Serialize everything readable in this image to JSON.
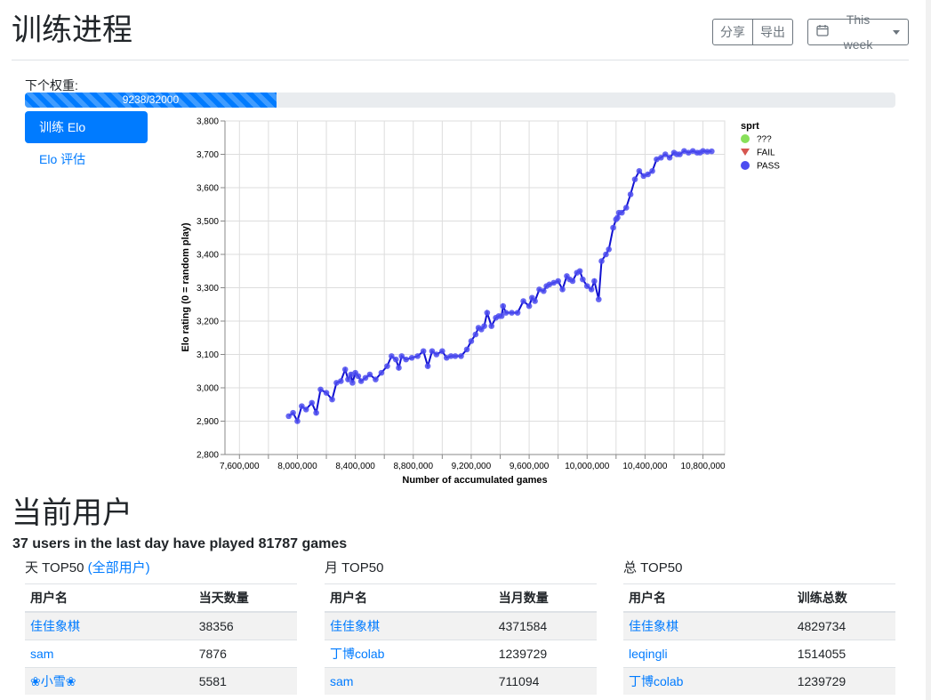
{
  "header": {
    "title": "训练进程",
    "share_label": "分享",
    "export_label": "导出",
    "range_label": "This week"
  },
  "progress": {
    "label": "下个权重:",
    "text": "9238/32000",
    "fraction": 0.289
  },
  "nav": {
    "items": [
      {
        "label": "训练 Elo",
        "active": true
      },
      {
        "label": "Elo 评估",
        "active": false
      }
    ]
  },
  "chart_data": {
    "type": "line",
    "xlabel": "Number of accumulated games",
    "ylabel": "Elo rating (0 = random play)",
    "xlim": [
      7500000,
      10950000
    ],
    "ylim": [
      2800,
      3800
    ],
    "x_ticks": [
      7600000,
      8000000,
      8400000,
      8800000,
      9200000,
      9600000,
      10000000,
      10400000,
      10800000
    ],
    "y_ticks": [
      2800,
      2900,
      3000,
      3100,
      3200,
      3300,
      3400,
      3500,
      3600,
      3700,
      3800
    ],
    "x_tick_labels": [
      "7,600,000",
      "8,000,000",
      "8,400,000",
      "8,800,000",
      "9,200,000",
      "9,600,000",
      "10,000,000",
      "10,400,000",
      "10,800,000"
    ],
    "y_tick_labels": [
      "2,800",
      "2,900",
      "3,000",
      "3,100",
      "3,200",
      "3,300",
      "3,400",
      "3,500",
      "3,600",
      "3,700",
      "3,800"
    ],
    "grid": true,
    "legend_title": "sprt",
    "legend_position": "top-right",
    "legend": [
      {
        "name": "???",
        "color": "#88e05a",
        "shape": "circle"
      },
      {
        "name": "FAIL",
        "color": "#d6564f",
        "shape": "triangle-down"
      },
      {
        "name": "PASS",
        "color": "#4c4cf0",
        "shape": "circle"
      }
    ],
    "line_color": "#1010d0",
    "series": [
      {
        "name": "PASS",
        "x": [
          7940000,
          7970000,
          8000000,
          8030000,
          8060000,
          8100000,
          8130000,
          8160000,
          8200000,
          8240000,
          8270000,
          8300000,
          8330000,
          8350000,
          8370000,
          8380000,
          8400000,
          8420000,
          8440000,
          8470000,
          8500000,
          8540000,
          8580000,
          8620000,
          8650000,
          8680000,
          8700000,
          8720000,
          8750000,
          8790000,
          8830000,
          8870000,
          8900000,
          8930000,
          8960000,
          9000000,
          9030000,
          9060000,
          9090000,
          9130000,
          9170000,
          9200000,
          9230000,
          9250000,
          9270000,
          9290000,
          9310000,
          9340000,
          9370000,
          9390000,
          9410000,
          9420000,
          9440000,
          9480000,
          9520000,
          9560000,
          9600000,
          9620000,
          9640000,
          9670000,
          9700000,
          9720000,
          9740000,
          9770000,
          9800000,
          9830000,
          9860000,
          9880000,
          9900000,
          9930000,
          9950000,
          9970000,
          10000000,
          10030000,
          10050000,
          10080000,
          10100000,
          10130000,
          10150000,
          10180000,
          10200000,
          10210000,
          10220000,
          10240000,
          10270000,
          10300000,
          10330000,
          10360000,
          10390000,
          10420000,
          10450000,
          10480000,
          10510000,
          10540000,
          10570000,
          10600000,
          10620000,
          10640000,
          10670000,
          10700000,
          10730000,
          10760000,
          10780000,
          10800000,
          10830000,
          10860000
        ],
        "y": [
          2915,
          2925,
          2900,
          2945,
          2935,
          2955,
          2925,
          2995,
          2985,
          2965,
          3015,
          3020,
          3055,
          3025,
          3040,
          3015,
          3045,
          3035,
          3020,
          3030,
          3040,
          3025,
          3045,
          3065,
          3095,
          3085,
          3060,
          3095,
          3085,
          3090,
          3095,
          3110,
          3065,
          3110,
          3100,
          3110,
          3090,
          3095,
          3095,
          3095,
          3115,
          3140,
          3160,
          3180,
          3175,
          3185,
          3225,
          3185,
          3210,
          3215,
          3215,
          3245,
          3225,
          3225,
          3225,
          3260,
          3245,
          3270,
          3260,
          3295,
          3290,
          3305,
          3310,
          3315,
          3320,
          3295,
          3335,
          3325,
          3320,
          3345,
          3350,
          3325,
          3305,
          3295,
          3320,
          3265,
          3380,
          3400,
          3415,
          3480,
          3505,
          3510,
          3525,
          3525,
          3540,
          3580,
          3625,
          3650,
          3635,
          3640,
          3650,
          3685,
          3690,
          3700,
          3690,
          3705,
          3700,
          3700,
          3710,
          3705,
          3710,
          3705,
          3705,
          3710,
          3708,
          3709
        ]
      }
    ]
  },
  "users": {
    "section_title": "当前用户",
    "summary": "37 users in the last day have played 81787 games",
    "panels": [
      {
        "title": "天 TOP50",
        "link": "(全部用户)",
        "columns": [
          "用户名",
          "当天数量"
        ],
        "rows": [
          [
            "佳佳象棋",
            "38356"
          ],
          [
            "sam",
            "7876"
          ],
          [
            "❀小雪❀",
            "5581"
          ]
        ]
      },
      {
        "title": "月 TOP50",
        "link": "",
        "columns": [
          "用户名",
          "当月数量"
        ],
        "rows": [
          [
            "佳佳象棋",
            "4371584"
          ],
          [
            "丁博colab",
            "1239729"
          ],
          [
            "sam",
            "711094"
          ]
        ]
      },
      {
        "title": "总 TOP50",
        "link": "",
        "columns": [
          "用户名",
          "训练总数"
        ],
        "rows": [
          [
            "佳佳象棋",
            "4829734"
          ],
          [
            "leqingli",
            "1514055"
          ],
          [
            "丁博colab",
            "1239729"
          ]
        ]
      }
    ]
  }
}
